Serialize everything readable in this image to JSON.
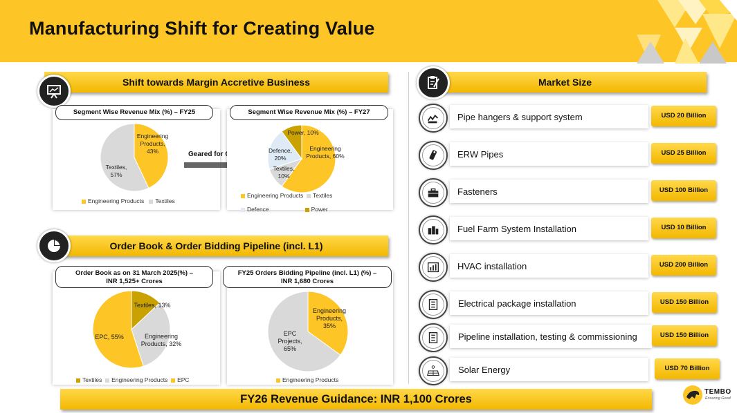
{
  "title": "Manufacturing Shift for Creating Value",
  "colors": {
    "accent": "#FDC526",
    "grey": "#D9D9D9",
    "light_blue": "#DEEBF7",
    "olive": "#C9A100"
  },
  "left_top": {
    "header": "Shift towards Margin Accretive Business",
    "icon": "presentation-board-icon",
    "arrow_label": "Geared for Growth",
    "fy25": {
      "title": "Segment Wise Revenue  Mix (%) – FY25",
      "chart_data": {
        "type": "pie",
        "categories": [
          "Engineering Products",
          "Textiles"
        ],
        "values": [
          43,
          57
        ]
      },
      "labels": {
        "eng_1": "Engineering",
        "eng_2": "Products,",
        "eng_3": "43%",
        "tex_1": "Textiles,",
        "tex_2": "57%"
      },
      "legend": [
        "Engineering Products",
        "Textiles"
      ]
    },
    "fy27": {
      "title": "Segment Wise Revenue  Mix (%) – FY27",
      "chart_data": {
        "type": "pie",
        "categories": [
          "Engineering Products",
          "Textiles",
          "Defence",
          "Power"
        ],
        "values": [
          60,
          10,
          20,
          10
        ]
      },
      "labels": {
        "power": "Power, 10%",
        "eng_1": "Engineering",
        "eng_2": "Products, 60%",
        "def_1": "Defence,",
        "def_2": "20%",
        "tex_1": "Textiles,",
        "tex_2": "10%"
      },
      "legend": [
        "Engineering Products",
        "Textiles",
        "Defence",
        "Power"
      ]
    }
  },
  "left_bottom": {
    "header": "Order Book & Order Bidding Pipeline (incl. L1)",
    "icon": "pie-chart-icon",
    "order_book": {
      "title_1": "Order Book as on 31 March 2025(%)  –",
      "title_2": "INR 1,525+ Crores",
      "chart_data": {
        "type": "pie",
        "categories": [
          "Textiles",
          "Engineering Products",
          "EPC"
        ],
        "values": [
          13,
          32,
          55
        ]
      },
      "labels": {
        "tex": "Textiles, 13%",
        "eng_1": "Engineering",
        "eng_2": "Products, 32%",
        "epc": "EPC, 55%"
      },
      "legend": [
        "Textiles",
        "Engineering Products",
        "EPC"
      ]
    },
    "pipeline": {
      "title_1": "FY25  Orders Bidding Pipeline (incl. L1) (%) –",
      "title_2": "INR 1,680 Crores",
      "chart_data": {
        "type": "pie",
        "categories": [
          "Engineering Products",
          "EPC Projects"
        ],
        "values": [
          35,
          65
        ]
      },
      "labels": {
        "eng_1": "Engineering",
        "eng_2": "Products,",
        "eng_3": "35%",
        "epc_1": "EPC",
        "epc_2": "Projects,",
        "epc_3": "65%"
      },
      "legend": [
        "Engineering Products"
      ]
    }
  },
  "market": {
    "header": "Market Size",
    "icon": "clipboard-pen-icon",
    "rows": [
      {
        "label": "Pipe hangers & support system",
        "value": "USD 20 Billion",
        "icon": "pipe-hanger-icon"
      },
      {
        "label": "ERW Pipes",
        "value": "USD 25 Billion",
        "icon": "pipe-icon"
      },
      {
        "label": "Fasteners",
        "value": "USD 100 Billion",
        "icon": "toolbox-icon"
      },
      {
        "label": "Fuel Farm System Installation",
        "value": "USD 10 Billion",
        "icon": "fuel-tank-icon"
      },
      {
        "label": "HVAC installation",
        "value": "USD 200 Billion",
        "icon": "hvac-unit-icon"
      },
      {
        "label": "Electrical package installation",
        "value": "USD 150 Billion",
        "icon": "checklist-icon"
      },
      {
        "label": "Pipeline installation, testing & commissioning",
        "value": "USD 150 Billion",
        "icon": "checklist-icon"
      },
      {
        "label": "Solar Energy",
        "value": "USD 70 Billion",
        "icon": "solar-panel-icon"
      }
    ]
  },
  "footer": {
    "guidance": "FY26 Revenue Guidance: INR 1,100 Crores"
  },
  "brand": {
    "name": "TEMBO",
    "tagline": "Ensuring Good"
  }
}
